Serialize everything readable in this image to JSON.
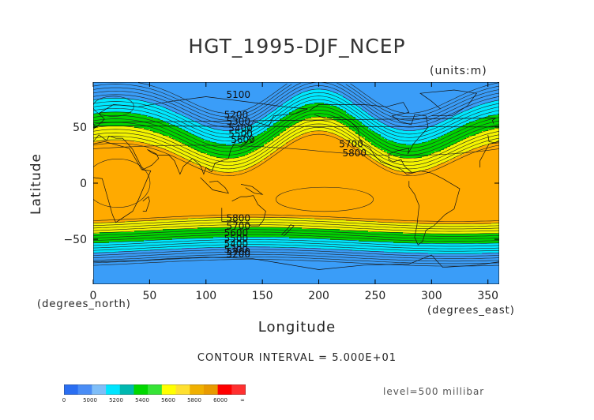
{
  "title": "HGT_1995-DJF_NCEP",
  "units": "(units:m)",
  "map": {
    "xlabel": "Longitude",
    "ylabel": "Latitude",
    "x_unit": "(degrees_east)",
    "y_unit": "(degrees_north)",
    "x_ticks": [
      "0",
      "50",
      "100",
      "150",
      "200",
      "250",
      "300",
      "350"
    ],
    "y_ticks": [
      "50",
      "0",
      "−50"
    ],
    "xlim": [
      0,
      360
    ],
    "ylim": [
      -90,
      90
    ],
    "contour_labels": [
      {
        "text": "5100",
        "lon": 118,
        "lat": 76
      },
      {
        "text": "5200",
        "lon": 116,
        "lat": 58
      },
      {
        "text": "5300",
        "lon": 118,
        "lat": 52
      },
      {
        "text": "5400",
        "lon": 120,
        "lat": 46
      },
      {
        "text": "5500",
        "lon": 120,
        "lat": 41
      },
      {
        "text": "5600",
        "lon": 122,
        "lat": 36
      },
      {
        "text": "5700",
        "lon": 218,
        "lat": 32
      },
      {
        "text": "5800",
        "lon": 221,
        "lat": 24
      },
      {
        "text": "5800",
        "lon": 118,
        "lat": -34
      },
      {
        "text": "5700",
        "lon": 118,
        "lat": -41
      },
      {
        "text": "5600",
        "lon": 116,
        "lat": -47
      },
      {
        "text": "5500",
        "lon": 116,
        "lat": -52
      },
      {
        "text": "5400",
        "lon": 116,
        "lat": -57
      },
      {
        "text": "5300",
        "lon": 116,
        "lat": -62
      },
      {
        "text": "5200",
        "lon": 118,
        "lat": -66
      },
      {
        "text": "5700",
        "lon": 118,
        "lat": -64
      }
    ]
  },
  "contour_interval": "CONTOUR INTERVAL = 5.000E+01",
  "level": "level=500 millibar",
  "colorbar": {
    "colors": [
      "#2a6ef2",
      "#4a8df6",
      "#7fbef8",
      "#00e5ff",
      "#00b8b0",
      "#00d800",
      "#36e436",
      "#ffff00",
      "#ffe030",
      "#f0b000",
      "#e89a00",
      "#ff0000",
      "#ff3030"
    ],
    "labels": [
      "0",
      "5000",
      "5200",
      "5400",
      "5600",
      "5800",
      "6000",
      "∞"
    ]
  },
  "field_colors": {
    "band_5000": "#3a9df8",
    "band_5200": "#00e8ff",
    "band_5400": "#00d400",
    "band_5600": "#f4f400",
    "band_5800": "#ffaa00"
  }
}
